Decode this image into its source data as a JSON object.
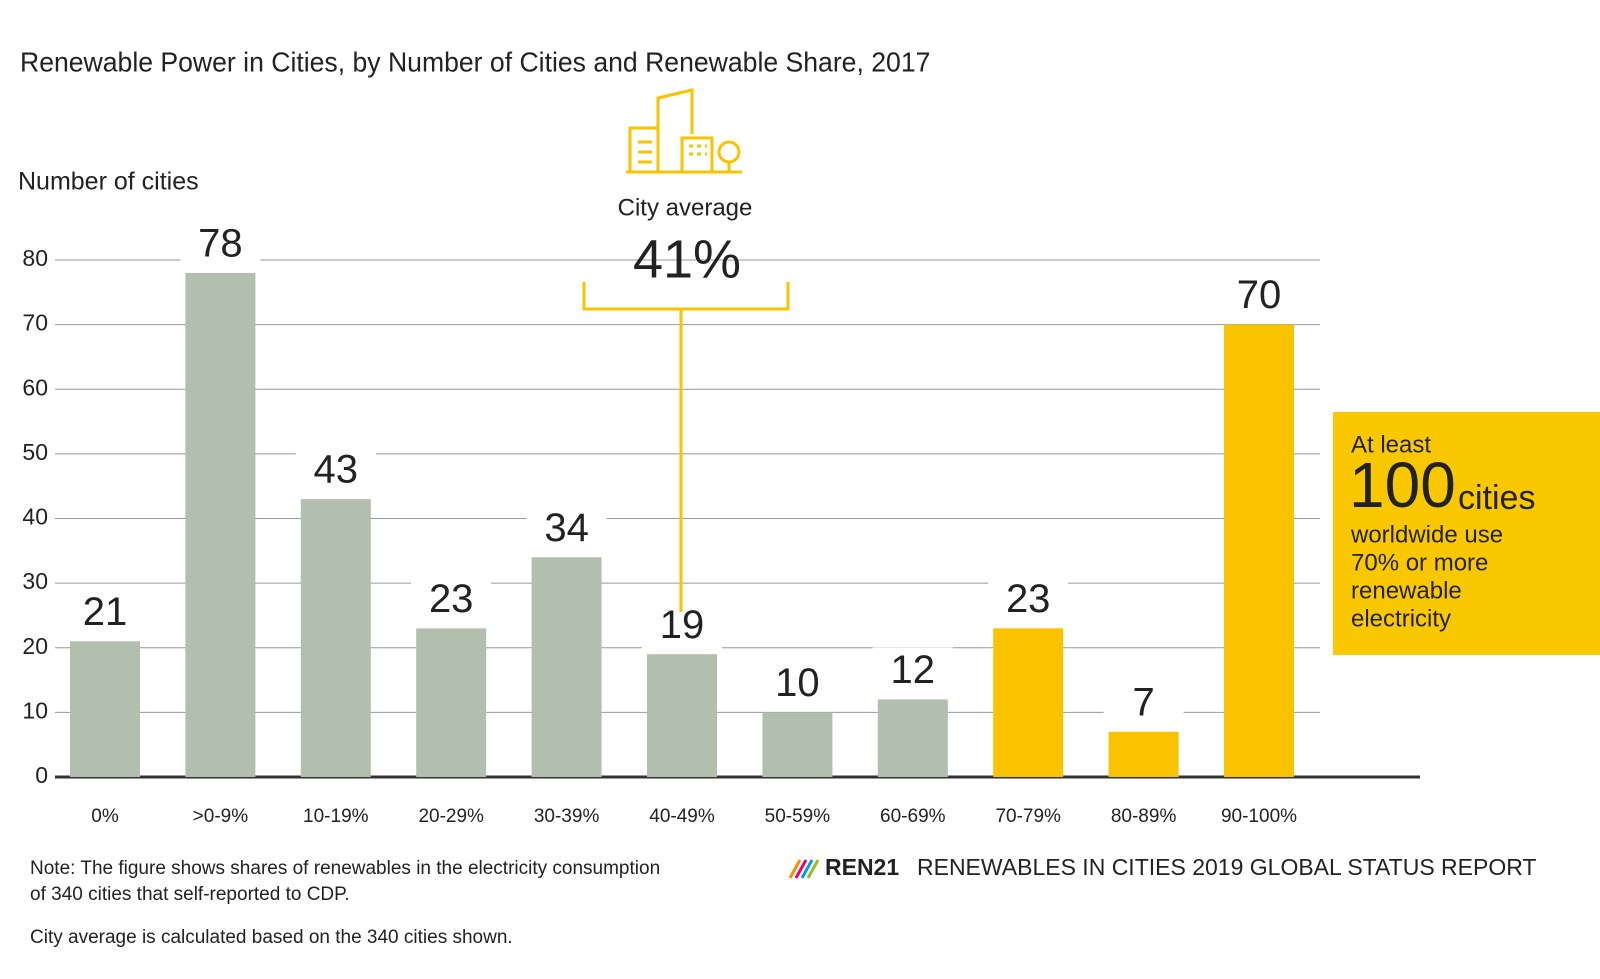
{
  "chart_data": {
    "type": "bar",
    "title": "Renewable Power in Cities, by Number of Cities and Renewable Share, 2017",
    "y_label": "Number of cities",
    "categories": [
      "0%",
      ">0-9%",
      "10-19%",
      "20-29%",
      "30-39%",
      "40-49%",
      "50-59%",
      "60-69%",
      "70-79%",
      "80-89%",
      "90-100%"
    ],
    "values": [
      21,
      78,
      43,
      23,
      34,
      19,
      10,
      12,
      23,
      7,
      70
    ],
    "colors": [
      "#b3bfae",
      "#b3bfae",
      "#b3bfae",
      "#b3bfae",
      "#b3bfae",
      "#b3bfae",
      "#b3bfae",
      "#b3bfae",
      "#f9c300",
      "#f9c300",
      "#f9c300"
    ],
    "ylim": [
      0,
      80
    ],
    "yticks": [
      0,
      10,
      20,
      30,
      40,
      50,
      60,
      70,
      80
    ],
    "grid": true,
    "average": {
      "label": "City average",
      "value_label": "41%"
    },
    "callout": {
      "intro": "At least",
      "number": "100",
      "unit": "cities",
      "lines": [
        "worldwide use",
        "70% or more",
        "renewable",
        "electricity"
      ]
    }
  },
  "notes": [
    "Note: The figure shows shares of renewables in the electricity consumption",
    "of 340 cities that self-reported to CDP.",
    "City average is calculated based on the 340 cities shown."
  ],
  "source": {
    "brand": "REN21",
    "report": "RENEWABLES IN CITIES 2019 GLOBAL STATUS REPORT"
  }
}
